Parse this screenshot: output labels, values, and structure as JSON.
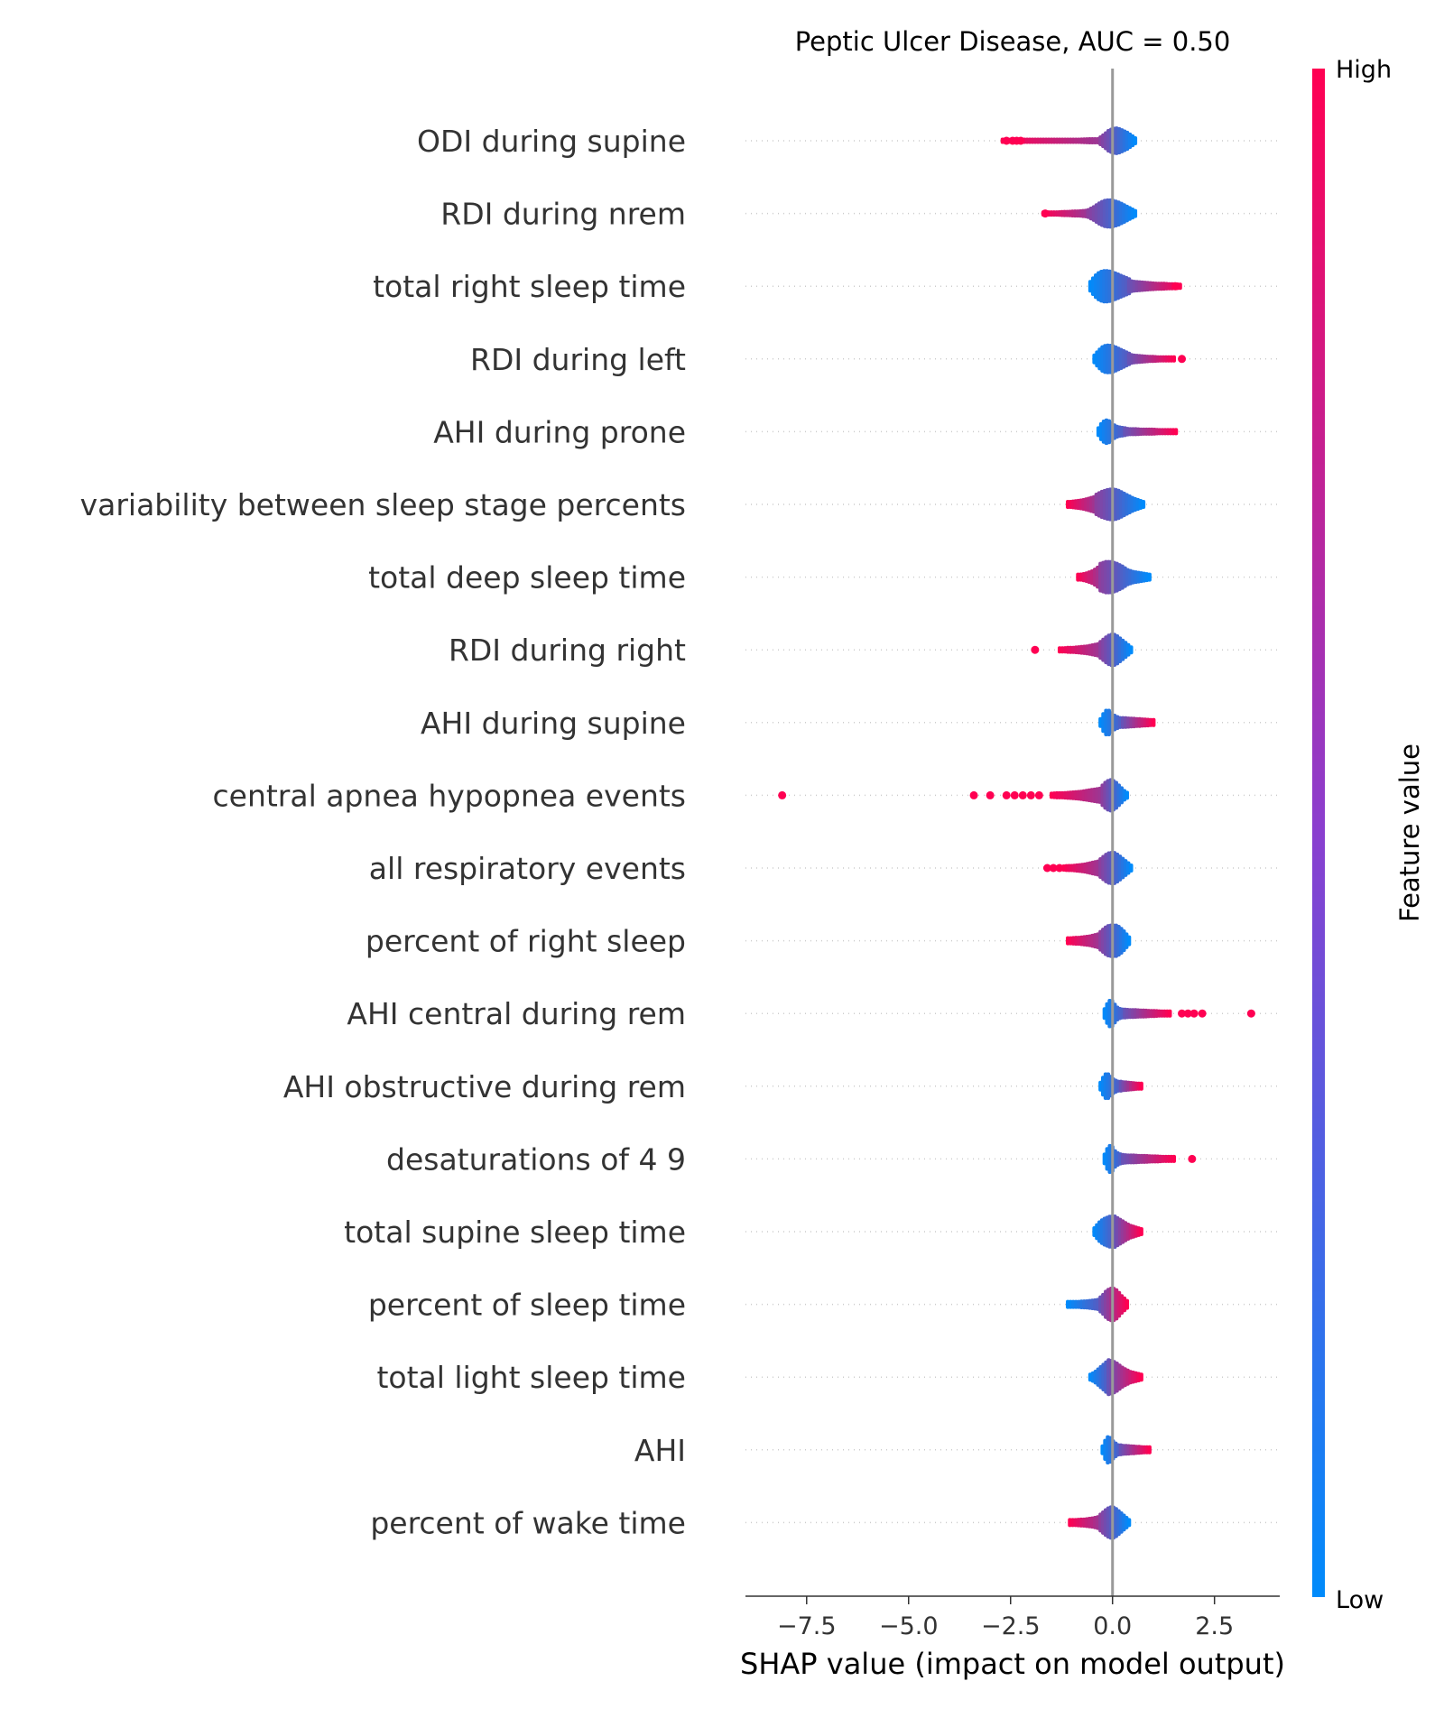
{
  "chart_data": {
    "type": "scatter",
    "subtype": "shap-beeswarm",
    "title": "Peptic Ulcer Disease, AUC =  0.50",
    "xlabel": "SHAP value (impact on model output)",
    "xlim": [
      -9.0,
      4.1
    ],
    "xticks": [
      -7.5,
      -5.0,
      -2.5,
      0.0,
      2.5
    ],
    "xtick_labels": [
      "−7.5",
      "−5.0",
      "−2.5",
      "0.0",
      "2.5"
    ],
    "grid": false,
    "colorbar": {
      "label": "Feature value",
      "high_label": "High",
      "low_label": "Low",
      "high_color": "#ff0052",
      "low_color": "#008bfb"
    },
    "features": [
      {
        "name": "ODI during supine",
        "low_side": {
          "min": -2.7,
          "max": -0.3,
          "thickness": [
            3,
            3,
            3,
            3,
            3,
            3,
            3,
            3,
            4,
            4
          ]
        },
        "high_side": {
          "min": -0.3,
          "max": 0.55,
          "thickness": [
            8,
            14,
            22,
            26,
            28,
            26,
            22,
            18,
            12,
            6
          ]
        },
        "left_color": "high",
        "right_color": "low",
        "outliers": [
          -2.6,
          -2.45,
          -2.35,
          -2.25
        ]
      },
      {
        "name": "RDI during nrem",
        "low_side": {
          "min": -1.7,
          "max": -0.6,
          "thickness": [
            3,
            3,
            3,
            3,
            4,
            4,
            5,
            5,
            6,
            7
          ]
        },
        "high_side": {
          "min": -0.6,
          "max": 0.55,
          "thickness": [
            8,
            14,
            22,
            28,
            30,
            28,
            24,
            18,
            12,
            6
          ]
        },
        "left_color": "high",
        "right_color": "low",
        "outliers": [
          -1.65
        ]
      },
      {
        "name": "total right sleep time",
        "low_side": {
          "min": -0.55,
          "max": 0.4,
          "thickness": [
            10,
            22,
            30,
            34,
            34,
            32,
            28,
            24,
            20,
            16
          ]
        },
        "high_side": {
          "min": 0.4,
          "max": 1.65,
          "thickness": [
            12,
            10,
            9,
            8,
            7,
            6,
            6,
            5,
            5,
            4
          ]
        },
        "left_color": "low",
        "right_color": "high",
        "outliers": [
          1.55
        ]
      },
      {
        "name": "RDI during left",
        "low_side": {
          "min": -0.45,
          "max": 0.4,
          "thickness": [
            8,
            18,
            26,
            30,
            30,
            28,
            24,
            20,
            16,
            12
          ]
        },
        "high_side": {
          "min": 0.4,
          "max": 1.5,
          "thickness": [
            10,
            8,
            7,
            6,
            5,
            5,
            4,
            4,
            4,
            4
          ]
        },
        "left_color": "low",
        "right_color": "high",
        "outliers": [
          1.7
        ]
      },
      {
        "name": "AHI during prone",
        "low_side": {
          "min": -0.35,
          "max": 0.3,
          "thickness": [
            8,
            18,
            24,
            26,
            22,
            16,
            12,
            10,
            9,
            8
          ]
        },
        "high_side": {
          "min": 0.3,
          "max": 1.55,
          "thickness": [
            7,
            6,
            6,
            5,
            5,
            5,
            4,
            4,
            4,
            4
          ]
        },
        "left_color": "low",
        "right_color": "high",
        "outliers": []
      },
      {
        "name": "variability between sleep stage percents",
        "low_side": {
          "min": -1.1,
          "max": -0.4,
          "thickness": [
            6,
            6,
            7,
            8,
            9,
            10,
            12,
            14,
            16,
            18
          ]
        },
        "high_side": {
          "min": -0.4,
          "max": 0.75,
          "thickness": [
            22,
            28,
            32,
            34,
            32,
            26,
            20,
            14,
            10,
            6
          ]
        },
        "left_color": "high",
        "right_color": "low",
        "outliers": []
      },
      {
        "name": "total deep sleep time",
        "low_side": {
          "min": -0.85,
          "max": -0.3,
          "thickness": [
            6,
            6,
            7,
            8,
            10,
            12,
            14,
            18,
            22,
            26
          ]
        },
        "high_side": {
          "min": -0.3,
          "max": 0.9,
          "thickness": [
            30,
            34,
            34,
            30,
            24,
            16,
            12,
            10,
            8,
            6
          ]
        },
        "left_color": "high",
        "right_color": "low",
        "outliers": []
      },
      {
        "name": "RDI during right",
        "low_side": {
          "min": -1.3,
          "max": -0.3,
          "thickness": [
            4,
            4,
            5,
            5,
            6,
            7,
            8,
            10,
            12,
            14
          ]
        },
        "high_side": {
          "min": -0.3,
          "max": 0.45,
          "thickness": [
            18,
            24,
            30,
            34,
            34,
            30,
            24,
            18,
            12,
            6
          ]
        },
        "left_color": "high",
        "right_color": "low",
        "outliers": [
          -1.9
        ]
      },
      {
        "name": "AHI during supine",
        "low_side": {
          "min": -0.3,
          "max": 0.25,
          "thickness": [
            8,
            18,
            26,
            28,
            24,
            18,
            14,
            12,
            10,
            10
          ]
        },
        "high_side": {
          "min": 0.25,
          "max": 1.0,
          "thickness": [
            10,
            10,
            9,
            9,
            8,
            8,
            7,
            7,
            6,
            6
          ]
        },
        "left_color": "low",
        "right_color": "high",
        "outliers": []
      },
      {
        "name": "central apnea hypopnea events",
        "low_side": {
          "min": -1.5,
          "max": -0.25,
          "thickness": [
            4,
            5,
            5,
            6,
            7,
            8,
            10,
            12,
            14,
            16
          ]
        },
        "high_side": {
          "min": -0.25,
          "max": 0.35,
          "thickness": [
            22,
            28,
            32,
            34,
            32,
            28,
            22,
            16,
            10,
            6
          ]
        },
        "left_color": "high",
        "right_color": "low",
        "outliers": [
          -8.1,
          -3.4,
          -3.0,
          -2.6,
          -2.4,
          -2.2,
          -2.0,
          -1.8
        ]
      },
      {
        "name": "all respiratory events",
        "low_side": {
          "min": -1.2,
          "max": -0.3,
          "thickness": [
            4,
            5,
            5,
            6,
            7,
            8,
            10,
            12,
            14,
            16
          ]
        },
        "high_side": {
          "min": -0.3,
          "max": 0.45,
          "thickness": [
            20,
            26,
            32,
            34,
            34,
            30,
            24,
            18,
            12,
            6
          ]
        },
        "left_color": "high",
        "right_color": "low",
        "outliers": [
          -1.6,
          -1.45,
          -1.3
        ]
      },
      {
        "name": "percent of right sleep",
        "low_side": {
          "min": -1.1,
          "max": -0.3,
          "thickness": [
            6,
            6,
            7,
            7,
            8,
            9,
            10,
            12,
            14,
            16
          ]
        },
        "high_side": {
          "min": -0.3,
          "max": 0.4,
          "thickness": [
            20,
            26,
            32,
            34,
            34,
            34,
            30,
            24,
            16,
            8
          ]
        },
        "left_color": "high",
        "right_color": "low",
        "outliers": []
      },
      {
        "name": "AHI central during rem",
        "low_side": {
          "min": -0.2,
          "max": 0.3,
          "thickness": [
            10,
            20,
            28,
            30,
            24,
            16,
            12,
            10,
            9,
            8
          ]
        },
        "high_side": {
          "min": 0.3,
          "max": 1.4,
          "thickness": [
            9,
            8,
            8,
            7,
            7,
            6,
            6,
            5,
            5,
            5
          ]
        },
        "left_color": "low",
        "right_color": "high",
        "outliers": [
          1.7,
          1.85,
          2.0,
          2.2,
          3.4
        ]
      },
      {
        "name": "AHI obstructive during rem",
        "low_side": {
          "min": -0.3,
          "max": 0.2,
          "thickness": [
            8,
            18,
            26,
            28,
            24,
            18,
            14,
            12,
            10,
            10
          ]
        },
        "high_side": {
          "min": 0.2,
          "max": 0.7,
          "thickness": [
            10,
            9,
            9,
            8,
            8,
            7,
            7,
            6,
            6,
            6
          ]
        },
        "left_color": "low",
        "right_color": "high",
        "outliers": []
      },
      {
        "name": "desaturations of 4 9",
        "low_side": {
          "min": -0.2,
          "max": 0.25,
          "thickness": [
            10,
            20,
            28,
            30,
            26,
            18,
            14,
            12,
            10,
            9
          ]
        },
        "high_side": {
          "min": 0.25,
          "max": 1.5,
          "thickness": [
            9,
            8,
            8,
            7,
            7,
            6,
            6,
            5,
            5,
            5
          ]
        },
        "left_color": "low",
        "right_color": "high",
        "outliers": [
          1.95
        ]
      },
      {
        "name": "total supine sleep time",
        "low_side": {
          "min": -0.45,
          "max": 0.05,
          "thickness": [
            8,
            14,
            20,
            24,
            28,
            30,
            32,
            34,
            34,
            34
          ]
        },
        "high_side": {
          "min": 0.05,
          "max": 0.7,
          "thickness": [
            32,
            30,
            26,
            22,
            18,
            14,
            12,
            10,
            8,
            6
          ]
        },
        "left_color": "low",
        "right_color": "high",
        "outliers": []
      },
      {
        "name": "percent of sleep time",
        "low_side": {
          "min": -1.1,
          "max": -0.3,
          "thickness": [
            6,
            6,
            6,
            6,
            7,
            7,
            8,
            9,
            10,
            12
          ]
        },
        "high_side": {
          "min": -0.3,
          "max": 0.35,
          "thickness": [
            16,
            22,
            30,
            34,
            36,
            34,
            28,
            20,
            14,
            8
          ]
        },
        "left_color": "low",
        "right_color": "high",
        "outliers": []
      },
      {
        "name": "total light sleep time",
        "low_side": {
          "min": -0.55,
          "max": -0.1,
          "thickness": [
            6,
            8,
            10,
            14,
            18,
            22,
            26,
            30,
            34,
            36
          ]
        },
        "high_side": {
          "min": -0.1,
          "max": 0.7,
          "thickness": [
            38,
            36,
            32,
            26,
            20,
            16,
            12,
            10,
            8,
            6
          ]
        },
        "left_color": "low",
        "right_color": "high",
        "outliers": []
      },
      {
        "name": "AHI",
        "low_side": {
          "min": -0.25,
          "max": 0.2,
          "thickness": [
            8,
            18,
            26,
            30,
            26,
            20,
            16,
            12,
            10,
            10
          ]
        },
        "high_side": {
          "min": 0.2,
          "max": 0.9,
          "thickness": [
            10,
            9,
            9,
            8,
            8,
            7,
            7,
            6,
            6,
            6
          ]
        },
        "left_color": "low",
        "right_color": "high",
        "outliers": []
      },
      {
        "name": "percent of wake time",
        "low_side": {
          "min": -1.05,
          "max": -0.3,
          "thickness": [
            6,
            6,
            6,
            7,
            7,
            8,
            9,
            10,
            12,
            14
          ]
        },
        "high_side": {
          "min": -0.3,
          "max": 0.4,
          "thickness": [
            18,
            24,
            30,
            34,
            34,
            30,
            24,
            18,
            12,
            6
          ]
        },
        "left_color": "high",
        "right_color": "low",
        "outliers": []
      }
    ]
  }
}
